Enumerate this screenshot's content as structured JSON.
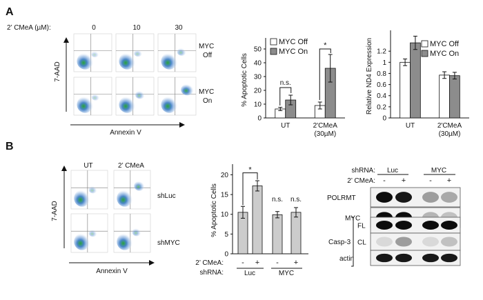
{
  "panels": {
    "a": "A",
    "b": "B"
  },
  "flow_a": {
    "conc_label": "2’ CMeA (µM):",
    "conc_values": [
      "0",
      "10",
      "30"
    ],
    "row_labels": [
      [
        "MYC",
        "Off"
      ],
      [
        "MYC",
        "On"
      ]
    ],
    "y_axis": "7-AAD",
    "x_axis": "Annexin V"
  },
  "flow_b": {
    "col_labels": [
      "UT",
      "2’ CMeA"
    ],
    "row_labels": [
      "shLuc",
      "shMYC"
    ],
    "y_axis": "7-AAD",
    "x_axis": "Annexin V"
  },
  "blot": {
    "shrna_label": "shRNA:",
    "groups": [
      "Luc",
      "MYC"
    ],
    "treat_label": "2’ CMeA:",
    "treat_signs": [
      "-",
      "+",
      "-",
      "+"
    ],
    "bands": [
      {
        "label": "POLRMT",
        "intensity": [
          0.95,
          0.9,
          0.35,
          0.3
        ]
      },
      {
        "label": "MYC",
        "intensity": [
          0.95,
          0.95,
          0.25,
          0.2
        ]
      },
      {
        "label": "FL",
        "intensity": [
          0.95,
          0.95,
          0.95,
          0.95
        ]
      },
      {
        "label": "CL",
        "intensity": [
          0.1,
          0.35,
          0.1,
          0.2
        ]
      },
      {
        "label": "actin",
        "intensity": [
          0.9,
          0.9,
          0.9,
          0.9
        ]
      }
    ],
    "casp_label": "Casp-3"
  },
  "colors": {
    "on": "#8c8c8c",
    "off": "#ffffff",
    "bars_b": "#cccccc"
  },
  "chart_data": [
    {
      "type": "bar",
      "ylabel": "% Apoptotic Cells",
      "categories": [
        [
          "UT"
        ],
        [
          "2'CMeA",
          "(30µM)"
        ]
      ],
      "yticks": [
        "0",
        "10",
        "20",
        "30",
        "40",
        "50"
      ],
      "ylim": [
        0,
        55
      ],
      "legend": [
        "MYC Off",
        "MYC On"
      ],
      "legend_position": "top-left",
      "series": [
        {
          "name": "MYC Off",
          "values": [
            6.5,
            9
          ],
          "errors": [
            1.2,
            2.5
          ]
        },
        {
          "name": "MYC On",
          "values": [
            13,
            36
          ],
          "errors": [
            3.5,
            10
          ]
        }
      ],
      "annotations": [
        "n.s.",
        "*"
      ]
    },
    {
      "type": "bar",
      "ylabel": "Relative ND4 Expression",
      "categories": [
        [
          "UT"
        ],
        [
          "2'CMeA",
          "(30µM)"
        ]
      ],
      "yticks": [
        "0",
        "0.2",
        "0.4",
        "0.6",
        "0.8",
        "1",
        "1.2"
      ],
      "ylim": [
        0,
        1.5
      ],
      "legend": [
        "MYC Off",
        "MYC On"
      ],
      "legend_position": "top-right",
      "series": [
        {
          "name": "MYC Off",
          "values": [
            1.0,
            0.77
          ],
          "errors": [
            0.06,
            0.06
          ]
        },
        {
          "name": "MYC On",
          "values": [
            1.35,
            0.76
          ],
          "errors": [
            0.12,
            0.06
          ]
        }
      ]
    },
    {
      "type": "bar",
      "ylabel": "% Apoptotic Cells",
      "values": [
        10.5,
        17.2,
        9.9,
        10.5
      ],
      "errors": [
        1.5,
        1.3,
        0.8,
        1.2
      ],
      "yticks": [
        "0",
        "5",
        "10",
        "15",
        "20"
      ],
      "ylim": [
        0,
        22
      ],
      "row_label_treat": "2’ CMeA:",
      "treat_signs": [
        "-",
        "+",
        "-",
        "+"
      ],
      "row_label_shrna": "shRNA:",
      "groups": [
        "Luc",
        "MYC"
      ],
      "annotations": [
        "*",
        "n.s.",
        "n.s."
      ]
    }
  ]
}
